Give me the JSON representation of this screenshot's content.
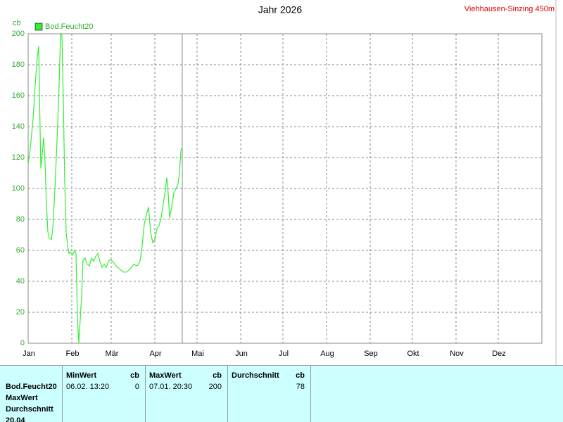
{
  "chart_data": {
    "type": "line",
    "title": "Jahr 2026",
    "station": "Viehhausen-Sinzing 450m",
    "y_label": "cb",
    "x": [
      0,
      1.5,
      3.5,
      5,
      6.5,
      7.5,
      8,
      9,
      10,
      11,
      12,
      13,
      14,
      15,
      16.5,
      17.5,
      19,
      20.5,
      22,
      23,
      24,
      25,
      26,
      27,
      28,
      29,
      30,
      31.5,
      33,
      34,
      35,
      36,
      38,
      39,
      40.5,
      42,
      43.5,
      45,
      46.5,
      48,
      49.5,
      51,
      52.5,
      54,
      55.5,
      57,
      58.5,
      60,
      62.5,
      65,
      67.5,
      70,
      72.5,
      75,
      77.5,
      79.5,
      81,
      82.5,
      84,
      85.5,
      87,
      88.5,
      90,
      91.5,
      93,
      94.5,
      96,
      97.5,
      98.5,
      99.5,
      100.5,
      102,
      103.5,
      105,
      106.5,
      107.5,
      108.5,
      109
    ],
    "series": [
      {
        "name": "Bod.Feucht20",
        "color": "#33ee33",
        "values": [
          116,
          126,
          145,
          167,
          185,
          192,
          163,
          113,
          122,
          133,
          117,
          90,
          72,
          68,
          67,
          74,
          99,
          131,
          167,
          200,
          199,
          156,
          104,
          72,
          63,
          58,
          59,
          57,
          60,
          58,
          17,
          0,
          31,
          54,
          55,
          51,
          50,
          55,
          53,
          56,
          58,
          53,
          49,
          51,
          49,
          53,
          54,
          53,
          50,
          48,
          46,
          46,
          48,
          51,
          50,
          53,
          63,
          77,
          83,
          88,
          72,
          65,
          67,
          74,
          76,
          81,
          90,
          99,
          107,
          97,
          81,
          88,
          97,
          100,
          103,
          110,
          124,
          126
        ]
      }
    ],
    "xlim": [
      0,
      365
    ],
    "xticks": [
      {
        "value": 0,
        "label": "Jan"
      },
      {
        "value": 31,
        "label": "Feb"
      },
      {
        "value": 59,
        "label": "Mär"
      },
      {
        "value": 90,
        "label": "Apr"
      },
      {
        "value": 120,
        "label": "Mai"
      },
      {
        "value": 151,
        "label": "Jun"
      },
      {
        "value": 181,
        "label": "Jul"
      },
      {
        "value": 212,
        "label": "Aug"
      },
      {
        "value": 243,
        "label": "Sep"
      },
      {
        "value": 273,
        "label": "Okt"
      },
      {
        "value": 304,
        "label": "Nov"
      },
      {
        "value": 334,
        "label": "Dez"
      }
    ],
    "ylim": [
      0,
      200
    ],
    "yticks": [
      0,
      20,
      40,
      60,
      80,
      100,
      120,
      140,
      160,
      180,
      200
    ],
    "grid": true,
    "current_day": 109.5
  },
  "stats_table": {
    "row_labels": [
      "Bod.Feucht20",
      "MaxWert",
      "Durchschnitt",
      "20.04"
    ],
    "columns": [
      {
        "header": "MinWert",
        "unit": "cb",
        "date": "06.02.  13:20",
        "value": 0
      },
      {
        "header": "MaxWert",
        "unit": "cb",
        "date": "07.01.  20:30",
        "value": 200
      },
      {
        "header": "Durchschnitt",
        "unit": "cb",
        "value": 78
      }
    ]
  }
}
